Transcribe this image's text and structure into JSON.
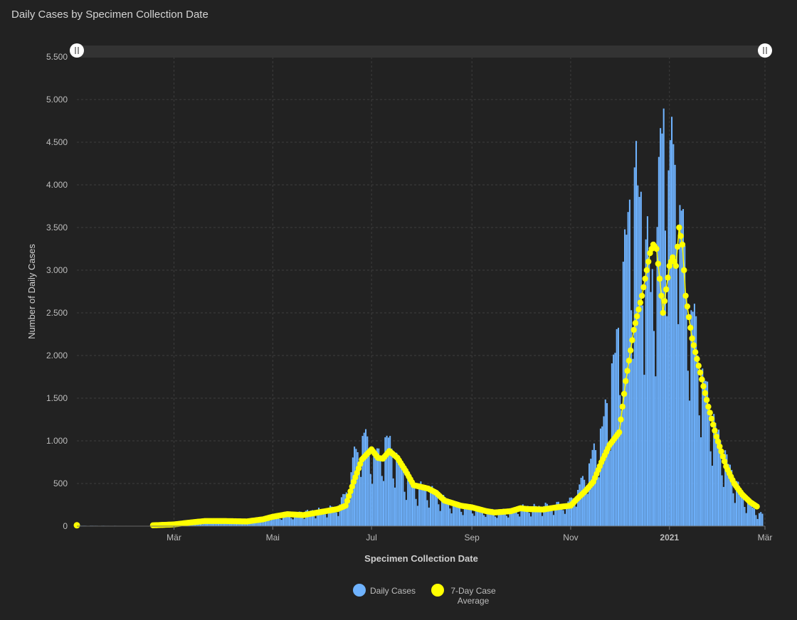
{
  "chart_data": {
    "type": "bar",
    "title": "Daily Cases by Specimen Collection Date",
    "xlabel": "Specimen Collection Date",
    "ylabel": "Number of Daily Cases",
    "ylim": [
      0,
      5500
    ],
    "yticks": [
      {
        "v": 0,
        "label": "0"
      },
      {
        "v": 500,
        "label": "500"
      },
      {
        "v": 1000,
        "label": "1.000"
      },
      {
        "v": 1500,
        "label": "1.500"
      },
      {
        "v": 2000,
        "label": "2.000"
      },
      {
        "v": 2500,
        "label": "2.500"
      },
      {
        "v": 3000,
        "label": "3.000"
      },
      {
        "v": 3500,
        "label": "3.500"
      },
      {
        "v": 4000,
        "label": "4.000"
      },
      {
        "v": 4500,
        "label": "4.500"
      },
      {
        "v": 5000,
        "label": "5.000"
      },
      {
        "v": 5500,
        "label": "5.500"
      }
    ],
    "xlim": [
      "2020-01-01",
      "2021-03-01"
    ],
    "xticks": [
      {
        "date": "2020-03-01",
        "label": "Mär"
      },
      {
        "date": "2020-05-01",
        "label": "Mai"
      },
      {
        "date": "2020-07-01",
        "label": "Jul"
      },
      {
        "date": "2020-09-01",
        "label": "Sep"
      },
      {
        "date": "2020-11-01",
        "label": "Nov"
      },
      {
        "date": "2021-01-01",
        "label": "2021"
      },
      {
        "date": "2021-03-01",
        "label": "Mär"
      }
    ],
    "grid": true,
    "legend_position": "bottom",
    "series": [
      {
        "name": "Daily Cases",
        "type": "bar",
        "color": "#6fb3ff",
        "points": [
          [
            "2020-01-01",
            5
          ],
          [
            "2020-02-15",
            3
          ],
          [
            "2020-03-01",
            8
          ],
          [
            "2020-03-15",
            35
          ],
          [
            "2020-04-01",
            70
          ],
          [
            "2020-04-15",
            65
          ],
          [
            "2020-05-01",
            120
          ],
          [
            "2020-05-15",
            150
          ],
          [
            "2020-06-01",
            190
          ],
          [
            "2020-06-10",
            220
          ],
          [
            "2020-06-15",
            400
          ],
          [
            "2020-06-20",
            800
          ],
          [
            "2020-06-25",
            1050
          ],
          [
            "2020-07-01",
            850
          ],
          [
            "2020-07-05",
            800
          ],
          [
            "2020-07-10",
            1000
          ],
          [
            "2020-07-18",
            700
          ],
          [
            "2020-07-25",
            480
          ],
          [
            "2020-08-05",
            420
          ],
          [
            "2020-08-15",
            300
          ],
          [
            "2020-08-25",
            230
          ],
          [
            "2020-09-05",
            200
          ],
          [
            "2020-09-15",
            170
          ],
          [
            "2020-09-25",
            190
          ],
          [
            "2020-10-01",
            220
          ],
          [
            "2020-10-10",
            220
          ],
          [
            "2020-10-20",
            240
          ],
          [
            "2020-10-30",
            260
          ],
          [
            "2020-11-05",
            420
          ],
          [
            "2020-11-10",
            600
          ],
          [
            "2020-11-15",
            850
          ],
          [
            "2020-11-20",
            1100
          ],
          [
            "2020-11-25",
            1600
          ],
          [
            "2020-12-01",
            2300
          ],
          [
            "2020-12-05",
            3300
          ],
          [
            "2020-12-10",
            3900
          ],
          [
            "2020-12-15",
            3600
          ],
          [
            "2020-12-20",
            2700
          ],
          [
            "2020-12-25",
            3700
          ],
          [
            "2020-12-28",
            4900
          ],
          [
            "2021-01-01",
            4000
          ],
          [
            "2021-01-05",
            4500
          ],
          [
            "2021-01-08",
            3400
          ],
          [
            "2021-01-12",
            2600
          ],
          [
            "2021-01-16",
            2300
          ],
          [
            "2021-01-20",
            1800
          ],
          [
            "2021-01-25",
            1400
          ],
          [
            "2021-01-30",
            1050
          ],
          [
            "2021-02-05",
            750
          ],
          [
            "2021-02-10",
            520
          ],
          [
            "2021-02-15",
            340
          ],
          [
            "2021-02-20",
            230
          ],
          [
            "2021-02-24",
            160
          ],
          [
            "2021-02-27",
            130
          ]
        ]
      },
      {
        "name": "7-Day Case Average",
        "type": "line",
        "color": "#ffff00",
        "points": [
          [
            "2020-01-01",
            10
          ],
          [
            "2020-02-17",
            10
          ],
          [
            "2020-03-01",
            20
          ],
          [
            "2020-03-10",
            40
          ],
          [
            "2020-03-20",
            60
          ],
          [
            "2020-04-01",
            60
          ],
          [
            "2020-04-15",
            55
          ],
          [
            "2020-04-25",
            80
          ],
          [
            "2020-05-01",
            110
          ],
          [
            "2020-05-10",
            140
          ],
          [
            "2020-05-20",
            130
          ],
          [
            "2020-06-01",
            170
          ],
          [
            "2020-06-10",
            200
          ],
          [
            "2020-06-15",
            240
          ],
          [
            "2020-06-20",
            520
          ],
          [
            "2020-06-25",
            780
          ],
          [
            "2020-07-01",
            900
          ],
          [
            "2020-07-05",
            800
          ],
          [
            "2020-07-08",
            790
          ],
          [
            "2020-07-12",
            880
          ],
          [
            "2020-07-17",
            800
          ],
          [
            "2020-07-22",
            650
          ],
          [
            "2020-07-27",
            480
          ],
          [
            "2020-08-05",
            440
          ],
          [
            "2020-08-10",
            390
          ],
          [
            "2020-08-15",
            300
          ],
          [
            "2020-08-25",
            240
          ],
          [
            "2020-09-01",
            220
          ],
          [
            "2020-09-10",
            175
          ],
          [
            "2020-09-15",
            160
          ],
          [
            "2020-09-25",
            175
          ],
          [
            "2020-10-01",
            210
          ],
          [
            "2020-10-05",
            200
          ],
          [
            "2020-10-15",
            195
          ],
          [
            "2020-10-25",
            225
          ],
          [
            "2020-11-01",
            240
          ],
          [
            "2020-11-05",
            320
          ],
          [
            "2020-11-10",
            410
          ],
          [
            "2020-11-15",
            520
          ],
          [
            "2020-11-20",
            750
          ],
          [
            "2020-11-25",
            950
          ],
          [
            "2020-12-01",
            1100
          ],
          [
            "2020-12-03",
            1400
          ],
          [
            "2020-12-05",
            1700
          ],
          [
            "2020-12-10",
            2300
          ],
          [
            "2020-12-15",
            2700
          ],
          [
            "2020-12-20",
            3200
          ],
          [
            "2020-12-22",
            3300
          ],
          [
            "2020-12-24",
            3250
          ],
          [
            "2020-12-26",
            2900
          ],
          [
            "2020-12-28",
            2500
          ],
          [
            "2021-01-01",
            3050
          ],
          [
            "2021-01-03",
            3150
          ],
          [
            "2021-01-05",
            3050
          ],
          [
            "2021-01-07",
            3500
          ],
          [
            "2021-01-09",
            3300
          ],
          [
            "2021-01-11",
            2700
          ],
          [
            "2021-01-15",
            2200
          ],
          [
            "2021-01-20",
            1800
          ],
          [
            "2021-01-25",
            1400
          ],
          [
            "2021-01-30",
            1050
          ],
          [
            "2021-02-05",
            700
          ],
          [
            "2021-02-10",
            500
          ],
          [
            "2021-02-15",
            370
          ],
          [
            "2021-02-20",
            280
          ],
          [
            "2021-02-24",
            230
          ]
        ]
      }
    ]
  },
  "legend": {
    "daily_cases": "Daily Cases",
    "avg_line1": "7-Day Case",
    "avg_line2": "Average"
  }
}
